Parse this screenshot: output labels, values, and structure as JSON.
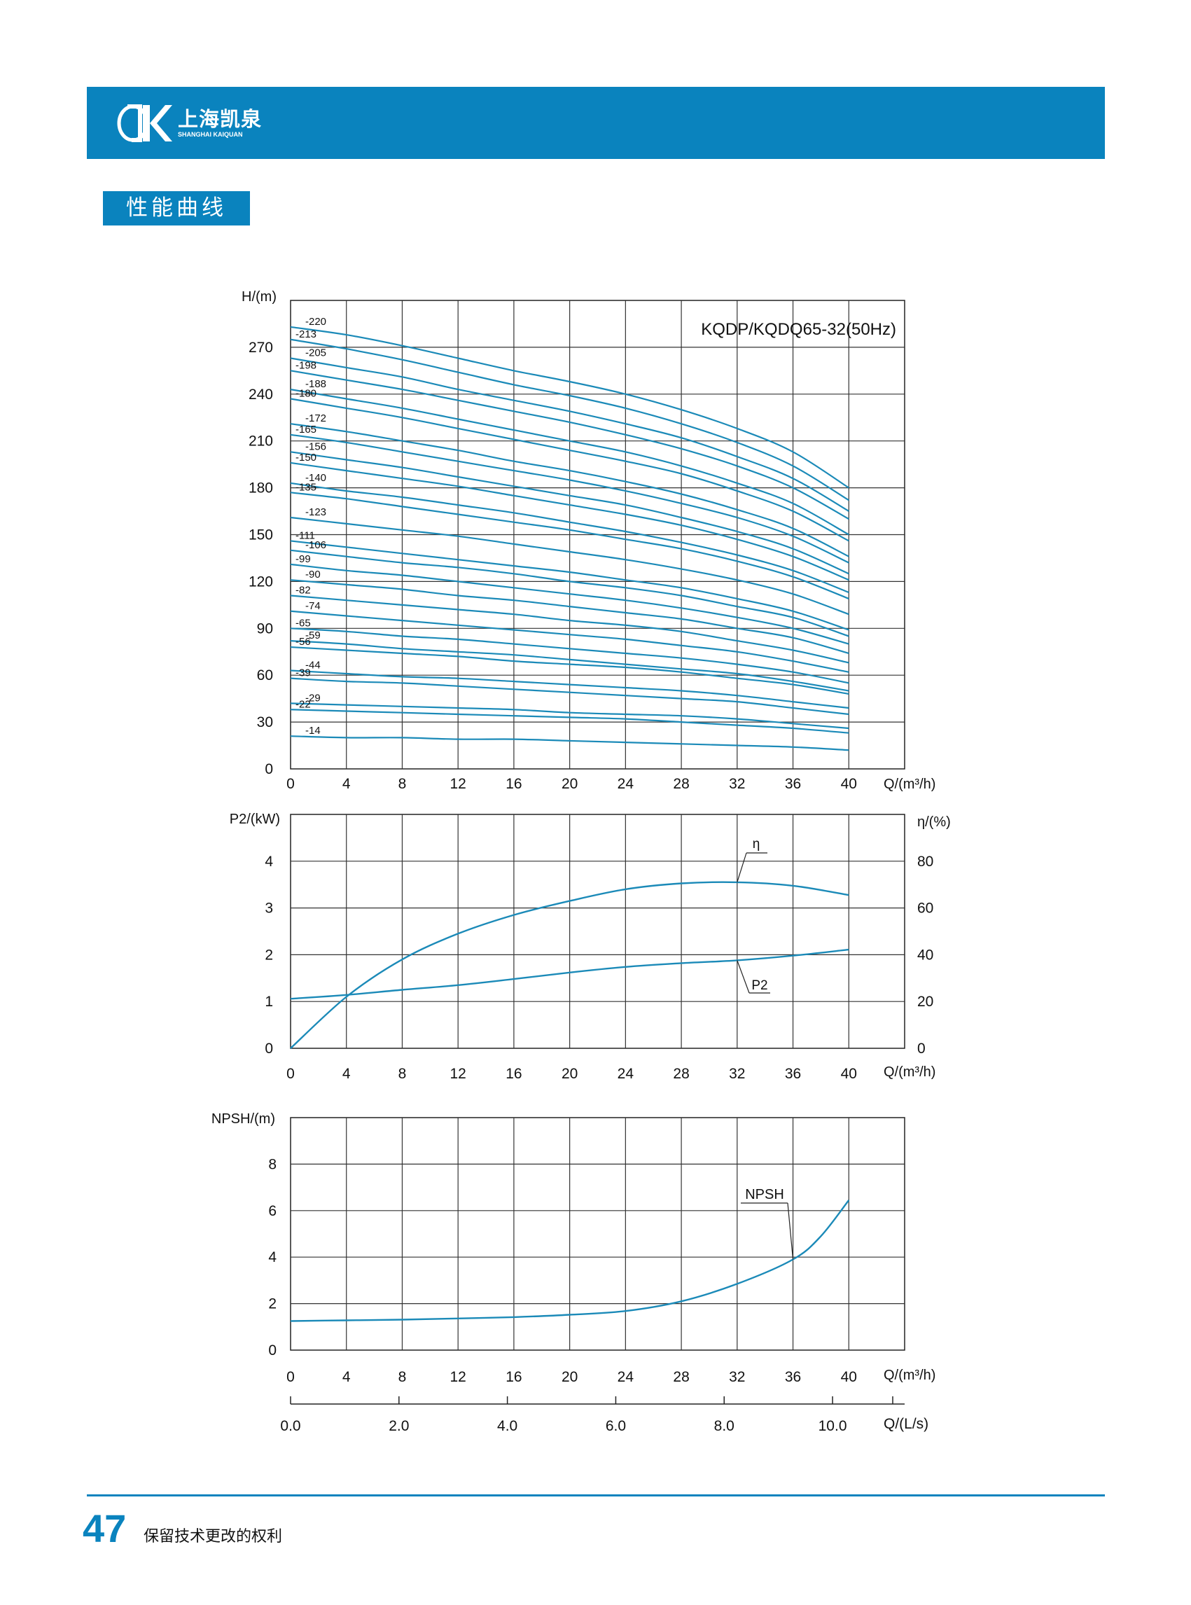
{
  "header": {
    "brand_cn": "上海凯泉",
    "brand_en": "SHANGHAI KAIQUAN",
    "accent_color": "#0a83be"
  },
  "section_title": "性能曲线",
  "footer": {
    "page_number": "47",
    "note": "保留技术更改的权利"
  },
  "chart_data": [
    {
      "type": "line",
      "name": "head",
      "title": "KQDP/KQDQ65-32(50Hz)",
      "ylabel": "H/(m)",
      "xlabel": "Q/(m³/h)",
      "xticks": [
        "0",
        "4",
        "8",
        "12",
        "16",
        "20",
        "24",
        "28",
        "32",
        "36",
        "40"
      ],
      "yticks": [
        "0",
        "30",
        "60",
        "90",
        "120",
        "150",
        "180",
        "210",
        "240",
        "270"
      ],
      "xlim": [
        0,
        44
      ],
      "ylim": [
        0,
        300
      ],
      "grid": true,
      "series_color": "#1b8ab8",
      "x": [
        0,
        4,
        8,
        12,
        16,
        20,
        24,
        28,
        32,
        36,
        40
      ],
      "stage_labels": [
        "220",
        "213",
        "205",
        "198",
        "188",
        "180",
        "172",
        "165",
        "156",
        "150",
        "140",
        "135",
        "123",
        "111",
        "106",
        "99",
        "90",
        "82",
        "74",
        "65",
        "59",
        "56",
        "44",
        "39",
        "29",
        "22",
        "14"
      ],
      "series": [
        {
          "name": "220",
          "values": [
            283,
            278,
            271,
            263,
            255,
            248,
            240,
            230,
            218,
            203,
            180
          ]
        },
        {
          "name": "213",
          "values": [
            275,
            269,
            262,
            254,
            246,
            239,
            231,
            221,
            209,
            194,
            172
          ]
        },
        {
          "name": "205",
          "values": [
            263,
            257,
            251,
            243,
            236,
            229,
            221,
            212,
            200,
            186,
            165
          ]
        },
        {
          "name": "198",
          "values": [
            255,
            249,
            243,
            236,
            229,
            222,
            214,
            205,
            194,
            180,
            160
          ]
        },
        {
          "name": "188",
          "values": [
            243,
            237,
            231,
            224,
            217,
            210,
            203,
            194,
            183,
            170,
            150
          ]
        },
        {
          "name": "180",
          "values": [
            237,
            231,
            225,
            218,
            211,
            204,
            197,
            189,
            178,
            165,
            146
          ]
        },
        {
          "name": "172",
          "values": [
            221,
            216,
            210,
            204,
            197,
            191,
            184,
            176,
            166,
            154,
            136
          ]
        },
        {
          "name": "165",
          "values": [
            214,
            209,
            203,
            197,
            191,
            185,
            178,
            170,
            161,
            149,
            132
          ]
        },
        {
          "name": "156",
          "values": [
            203,
            198,
            193,
            187,
            181,
            175,
            169,
            161,
            152,
            141,
            125
          ]
        },
        {
          "name": "150",
          "values": [
            196,
            191,
            186,
            181,
            175,
            169,
            163,
            156,
            147,
            136,
            121
          ]
        },
        {
          "name": "140",
          "values": [
            183,
            178,
            174,
            169,
            164,
            158,
            152,
            145,
            137,
            127,
            113
          ]
        },
        {
          "name": "135",
          "values": [
            177,
            173,
            168,
            163,
            158,
            153,
            147,
            141,
            133,
            123,
            109
          ]
        },
        {
          "name": "123",
          "values": [
            161,
            157,
            153,
            149,
            144,
            139,
            134,
            128,
            121,
            112,
            99
          ]
        },
        {
          "name": "111",
          "values": [
            146,
            142,
            138,
            134,
            130,
            126,
            121,
            116,
            109,
            101,
            89
          ]
        },
        {
          "name": "106",
          "values": [
            140,
            136,
            132,
            129,
            125,
            120,
            116,
            111,
            104,
            97,
            85
          ]
        },
        {
          "name": "99",
          "values": [
            131,
            127,
            124,
            120,
            116,
            112,
            108,
            103,
            97,
            90,
            80
          ]
        },
        {
          "name": "90",
          "values": [
            121,
            118,
            115,
            111,
            108,
            104,
            100,
            96,
            90,
            84,
            74
          ]
        },
        {
          "name": "82",
          "values": [
            111,
            108,
            105,
            102,
            99,
            95,
            92,
            88,
            82,
            76,
            68
          ]
        },
        {
          "name": "74",
          "values": [
            101,
            98,
            95,
            92,
            89,
            86,
            83,
            79,
            75,
            69,
            62
          ]
        },
        {
          "name": "65",
          "values": [
            90,
            88,
            85,
            83,
            80,
            77,
            74,
            71,
            67,
            62,
            55
          ]
        },
        {
          "name": "59",
          "values": [
            82,
            80,
            77,
            75,
            73,
            70,
            67,
            64,
            61,
            56,
            50
          ]
        },
        {
          "name": "56",
          "values": [
            78,
            76,
            74,
            72,
            69,
            67,
            65,
            62,
            58,
            54,
            48
          ]
        },
        {
          "name": "44",
          "values": [
            63,
            61,
            59,
            58,
            56,
            54,
            52,
            50,
            47,
            43,
            39
          ]
        },
        {
          "name": "39",
          "values": [
            58,
            56,
            55,
            53,
            51,
            49,
            47,
            45,
            43,
            39,
            35
          ]
        },
        {
          "name": "29",
          "values": [
            42,
            41,
            40,
            39,
            38,
            36,
            35,
            34,
            32,
            29,
            26
          ]
        },
        {
          "name": "22",
          "values": [
            38,
            37,
            36,
            35,
            34,
            33,
            32,
            30,
            28,
            26,
            23
          ]
        },
        {
          "name": "14",
          "values": [
            21,
            20,
            20,
            19,
            19,
            18,
            17,
            16,
            15,
            14,
            12
          ]
        }
      ]
    },
    {
      "type": "line",
      "name": "power-efficiency",
      "ylabel": "P2/(kW)",
      "ylabel_right": "η/(%)",
      "xlabel": "Q/(m³/h)",
      "xticks": [
        "0",
        "4",
        "8",
        "12",
        "16",
        "20",
        "24",
        "28",
        "32",
        "36",
        "40"
      ],
      "yticks_left": [
        "0",
        "1",
        "2",
        "3",
        "4"
      ],
      "yticks_right": [
        "0",
        "20",
        "40",
        "60",
        "80"
      ],
      "xlim": [
        0,
        44
      ],
      "ylim": [
        0,
        5
      ],
      "ylim_right": [
        0,
        100
      ],
      "grid": true,
      "x": [
        0,
        4,
        8,
        12,
        16,
        20,
        24,
        28,
        32,
        36,
        40
      ],
      "series": [
        {
          "name": "η",
          "axis": "right",
          "values": [
            0,
            22,
            38,
            49,
            57,
            63,
            68,
            70.5,
            71,
            69.5,
            65.5
          ]
        },
        {
          "name": "P2",
          "axis": "left",
          "values": [
            1.06,
            1.14,
            1.25,
            1.35,
            1.48,
            1.62,
            1.74,
            1.82,
            1.88,
            1.98,
            2.11
          ]
        }
      ]
    },
    {
      "type": "line",
      "name": "npsh",
      "ylabel": "NPSH/(m)",
      "xlabel": "Q/(m³/h)",
      "xlabel2": "Q/(L/s)",
      "xticks": [
        "0",
        "4",
        "8",
        "12",
        "16",
        "20",
        "24",
        "28",
        "32",
        "36",
        "40"
      ],
      "xticks2": [
        "0.0",
        "2.0",
        "4.0",
        "6.0",
        "8.0",
        "10.0"
      ],
      "yticks": [
        "0",
        "2",
        "4",
        "6",
        "8"
      ],
      "xlim": [
        0,
        44
      ],
      "ylim": [
        0,
        10
      ],
      "grid": true,
      "x": [
        0,
        4,
        8,
        12,
        16,
        20,
        24,
        28,
        32,
        36,
        38,
        40
      ],
      "series": [
        {
          "name": "NPSH",
          "values": [
            1.25,
            1.28,
            1.31,
            1.36,
            1.42,
            1.52,
            1.68,
            2.1,
            2.85,
            3.9,
            4.9,
            6.45
          ]
        }
      ]
    }
  ]
}
